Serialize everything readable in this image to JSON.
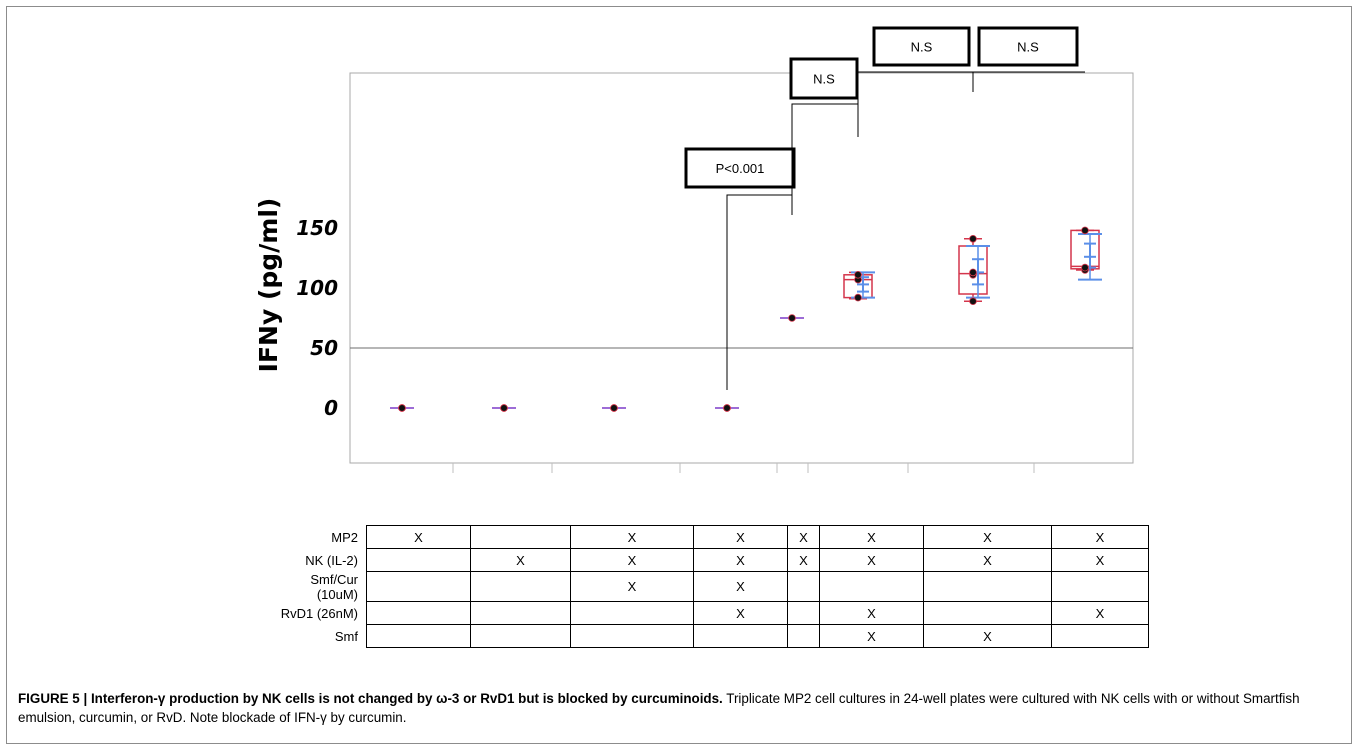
{
  "chart_data": {
    "type": "box",
    "ylabel": "IFNy (pg/ml)",
    "yticks": [
      0,
      50,
      100,
      150
    ],
    "ylim": [
      -25,
      152
    ],
    "gridlines": [
      50
    ],
    "groups": [
      {
        "points": [
          0,
          0,
          0
        ]
      },
      {
        "points": [
          0,
          0,
          0
        ]
      },
      {
        "points": [
          0,
          0,
          0
        ]
      },
      {
        "points": [
          0,
          0,
          0
        ]
      },
      {
        "points": [
          75
        ]
      },
      {
        "points": [
          92,
          107,
          111
        ],
        "box": {
          "q1": 92,
          "median": 107,
          "q3": 111,
          "lo": 91,
          "hi": 113
        },
        "mean": 103,
        "ci": [
          97,
          109
        ],
        "sd": [
          92,
          113
        ]
      },
      {
        "points": [
          89,
          111,
          113,
          141
        ],
        "box": {
          "q1": 95,
          "median": 112,
          "q3": 135,
          "lo": 89,
          "hi": 141
        },
        "mean": 113,
        "ci": [
          103,
          124
        ],
        "sd": [
          92,
          135
        ]
      },
      {
        "points": [
          115,
          117,
          148
        ],
        "box": {
          "q1": 116,
          "median": 118,
          "q3": 148,
          "lo": 115,
          "hi": 148
        },
        "mean": 126,
        "ci": [
          117,
          137
        ],
        "sd": [
          107,
          145
        ]
      }
    ],
    "annotations": [
      {
        "label": "P<0.001",
        "from_group": 3,
        "to_group": 4
      },
      {
        "label": "N.S",
        "from_group": 4,
        "to_group": 5
      },
      {
        "label": "N.S",
        "from_group": 5,
        "to_group": 6
      },
      {
        "label": "N.S",
        "from_group": 6,
        "to_group": 7
      }
    ],
    "colors": {
      "box": "#d4354b",
      "ci": "#5b8fe8",
      "point": "#111111",
      "grid": "#6e6e6e"
    }
  },
  "table": {
    "rows": [
      {
        "label": "MP2",
        "cells": [
          "X",
          "",
          "X",
          "X",
          "X",
          "X",
          "X",
          "X"
        ]
      },
      {
        "label": "NK (IL-2)",
        "cells": [
          "",
          "X",
          "X",
          "X",
          "X",
          "X",
          "X",
          "X"
        ]
      },
      {
        "label": "Smf/Cur (10uM)",
        "cells": [
          "",
          "",
          "X",
          "X",
          "",
          "",
          "",
          ""
        ]
      },
      {
        "label": "RvD1 (26nM)",
        "cells": [
          "",
          "",
          "",
          "X",
          "",
          "X",
          "",
          "X"
        ]
      },
      {
        "label": "Smf",
        "cells": [
          "",
          "",
          "",
          "",
          "",
          "X",
          "X",
          ""
        ]
      }
    ]
  },
  "caption": {
    "bold": "FIGURE 5 | Interferon-γ production by NK cells is not changed by ω-3 or RvD1 but is blocked by curcuminoids.",
    "text": " Triplicate MP2 cell cultures in 24-well plates were cultured with NK cells with or without Smartfish emulsion, curcumin, or RvD. Note blockade of IFN-γ by curcumin."
  }
}
